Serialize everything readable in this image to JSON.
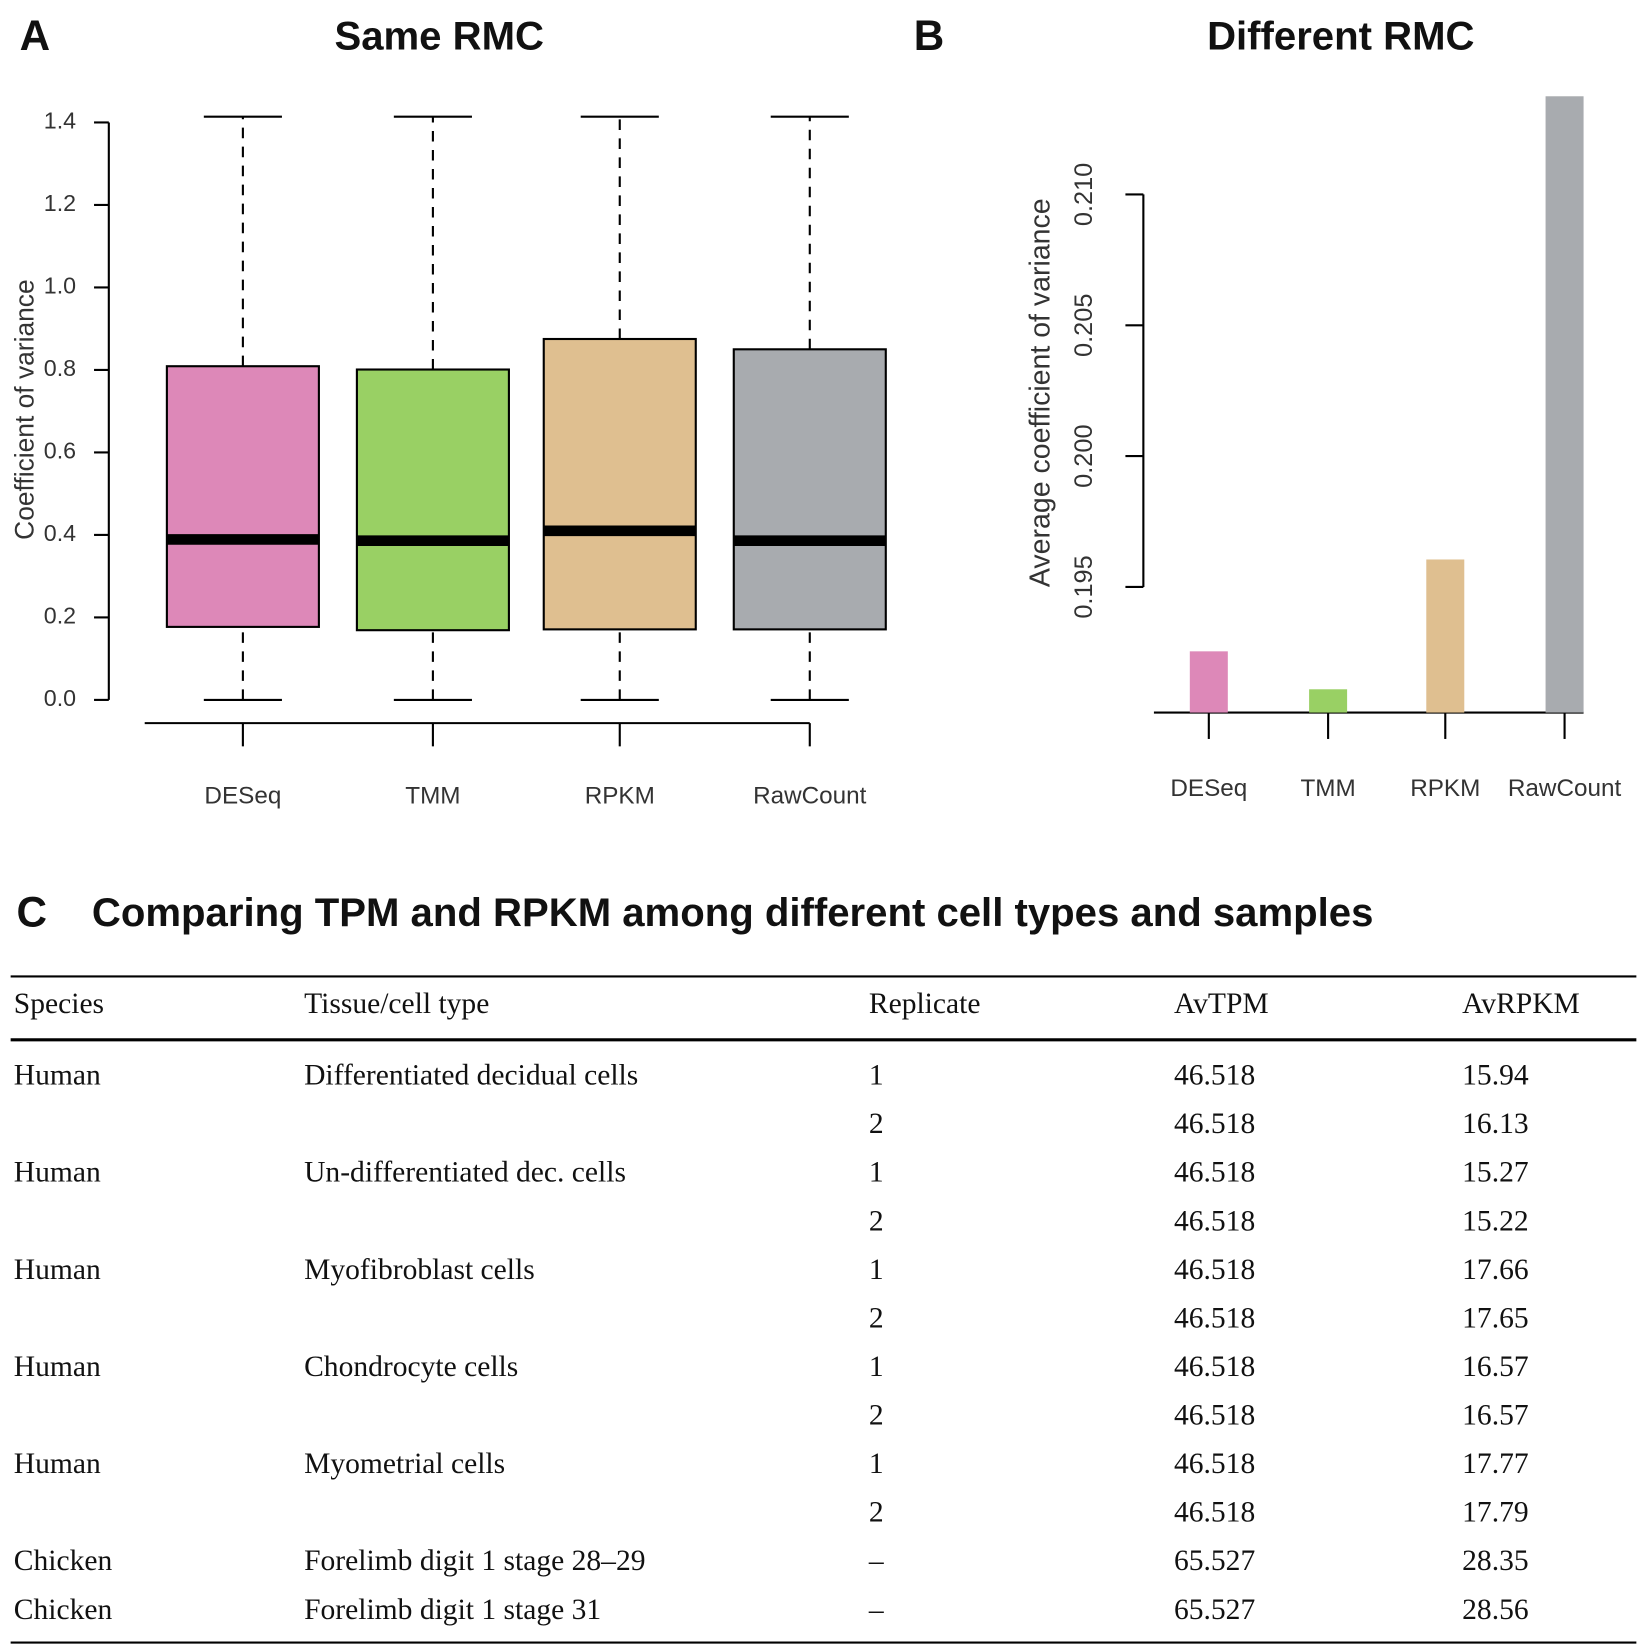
{
  "chart_data": [
    {
      "type": "box",
      "panel": "A",
      "title": "Same RMC",
      "y_label": "Coefficient of variance",
      "categories": [
        "DESeq",
        "TMM",
        "RPKM",
        "RawCount"
      ],
      "colors": [
        "#dd88b8",
        "#99d064",
        "#dfbf90",
        "#a8abaf"
      ],
      "boxes": [
        {
          "whislo": 0,
          "q1": 0.177,
          "med": 0.389,
          "q3": 0.809,
          "whishi": 1.414
        },
        {
          "whislo": 0,
          "q1": 0.169,
          "med": 0.386,
          "q3": 0.801,
          "whishi": 1.414
        },
        {
          "whislo": 0,
          "q1": 0.171,
          "med": 0.41,
          "q3": 0.875,
          "whishi": 1.414
        },
        {
          "whislo": 0,
          "q1": 0.171,
          "med": 0.386,
          "q3": 0.85,
          "whishi": 1.414
        }
      ],
      "ylim": [
        0,
        1.4
      ],
      "yticks": [
        {
          "value": 0,
          "label": "0.0"
        },
        0.2,
        0.4,
        0.6,
        0.8,
        {
          "value": 1,
          "label": "1.0"
        },
        1.2,
        1.4
      ]
    },
    {
      "type": "bar",
      "panel": "B",
      "title": "Different RMC",
      "y_label": "Average coefficient of variance",
      "categories": [
        "DESeq",
        "TMM",
        "RPKM",
        "RawCount"
      ],
      "colors": [
        "#dd88b8",
        "#99d064",
        "#dfbf90",
        "#a8abaf"
      ],
      "values": [
        0.19254,
        0.19109,
        0.19605,
        0.21375
      ],
      "ylim": [
        0.1902,
        0.214
      ],
      "yticks": [
        0.195,
        {
          "value": 0.2,
          "label": "0.200"
        },
        0.205,
        {
          "value": 0.21,
          "label": "0.210"
        }
      ]
    }
  ],
  "table": {
    "panel": "C",
    "title": "Comparing TPM and RPKM among different cell types and samples",
    "columns": [
      "Species",
      "Tissue/cell type",
      "Replicate",
      "AvTPM",
      "AvRPKM"
    ],
    "rows": [
      [
        "Human",
        "Differentiated decidual cells",
        "1",
        "46.518",
        "15.94"
      ],
      [
        null,
        null,
        "2",
        "46.518",
        "16.13"
      ],
      [
        "Human",
        "Un-differentiated dec. cells",
        "1",
        "46.518",
        "15.27"
      ],
      [
        null,
        null,
        "2",
        "46.518",
        "15.22"
      ],
      [
        "Human",
        "Myofibroblast cells",
        "1",
        "46.518",
        "17.66"
      ],
      [
        null,
        null,
        "2",
        "46.518",
        "17.65"
      ],
      [
        "Human",
        "Chondrocyte cells",
        "1",
        "46.518",
        "16.57"
      ],
      [
        null,
        null,
        "2",
        "46.518",
        "16.57"
      ],
      [
        "Human",
        "Myometrial cells",
        "1",
        "46.518",
        "17.77"
      ],
      [
        null,
        null,
        "2",
        "46.518",
        "17.79"
      ],
      [
        "Chicken",
        "Forelimb digit 1 stage 28–29",
        "–",
        "65.527",
        "28.35"
      ],
      [
        "Chicken",
        "Forelimb digit 1 stage 31",
        "–",
        "65.527",
        "28.56"
      ]
    ]
  }
}
